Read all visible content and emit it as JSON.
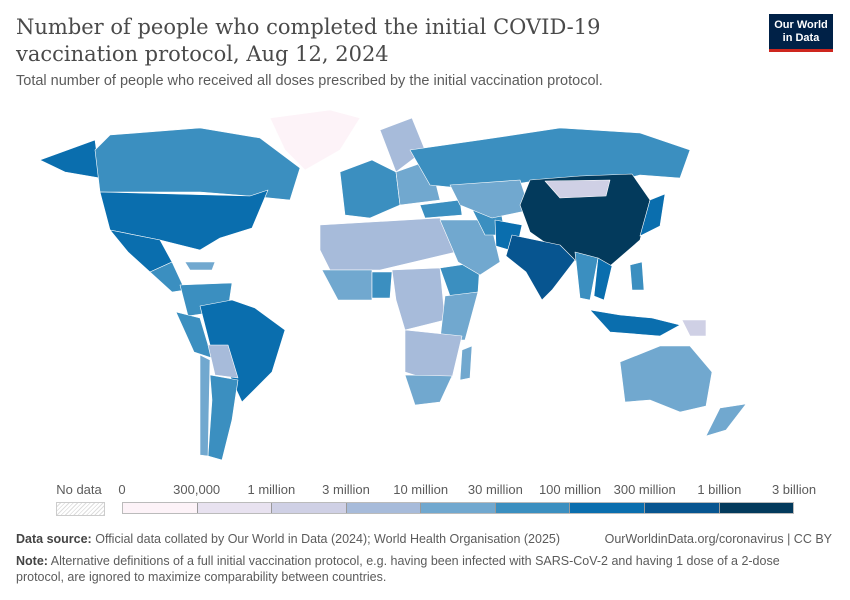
{
  "header": {
    "title": "Number of people who completed the initial COVID-19 vaccination protocol, Aug 12, 2024",
    "subtitle": "Total number of people who received all doses prescribed by the initial vaccination protocol.",
    "logo_line1": "Our World",
    "logo_line2": "in Data"
  },
  "legend": {
    "no_data_label": "No data",
    "ticks": [
      "0",
      "300,000",
      "1 million",
      "3 million",
      "10 million",
      "30 million",
      "100 million",
      "300 million",
      "1 billion",
      "3 billion"
    ],
    "colors": [
      "#fdf3f8",
      "#e8e2f0",
      "#cfd0e5",
      "#a7bbda",
      "#71a8cf",
      "#3b8fc0",
      "#0a6eae",
      "#075590",
      "#033a5c"
    ]
  },
  "map_data": {
    "bins_by_region": {
      "Greenland": 0,
      "Canada": 5,
      "Alaska": 6,
      "United States": 6,
      "Mexico": 6,
      "Central America": 5,
      "Caribbean": 4,
      "Colombia-Venezuela": 5,
      "Peru": 5,
      "Brazil": 6,
      "Bolivia-Paraguay": 3,
      "Argentina": 5,
      "Chile": 4,
      "Western Europe": 5,
      "Scandinavia": 3,
      "Eastern Europe": 4,
      "Turkey": 5,
      "North Africa": 3,
      "West Africa": 4,
      "Nigeria": 5,
      "Central Africa": 3,
      "East Africa": 4,
      "Ethiopia": 5,
      "Southern Africa": 3,
      "South Africa": 4,
      "Madagascar": 4,
      "Middle East": 4,
      "Iran": 5,
      "Russia": 5,
      "Kazakhstan": 4,
      "Mongolia": 2,
      "China": 8,
      "Pakistan": 6,
      "India": 7,
      "Southeast Asia": 5,
      "Vietnam": 6,
      "Japan": 6,
      "Philippines": 5,
      "Indonesia": 6,
      "Papua New Guinea": 2,
      "Australia": 4,
      "New Zealand": 4
    }
  },
  "footer": {
    "source_label": "Data source:",
    "source_text": "Official data collated by Our World in Data (2024); World Health Organisation (2025)",
    "url": "OurWorldinData.org/coronavirus | CC BY",
    "note_label": "Note:",
    "note_text": "Alternative definitions of a full initial vaccination protocol, e.g. having been infected with SARS-CoV-2 and having 1 dose of a 2-dose protocol, are ignored to maximize comparability between countries."
  }
}
